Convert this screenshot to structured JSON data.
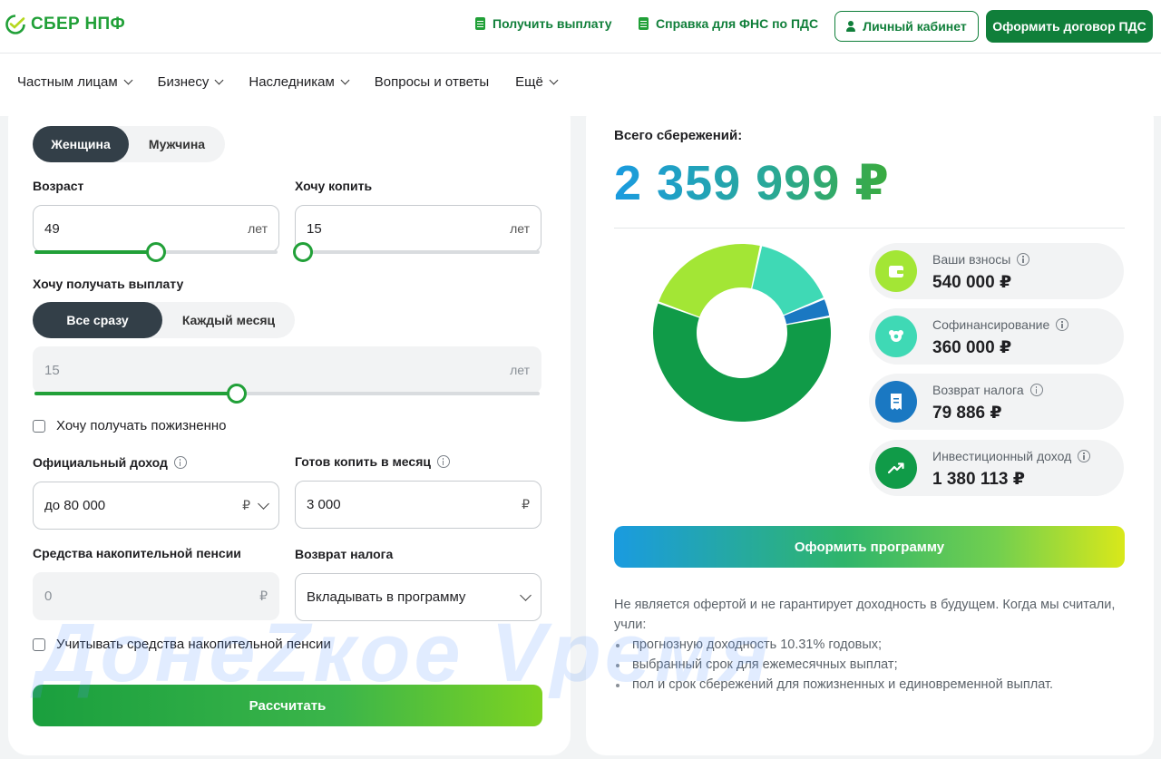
{
  "header": {
    "logo_text": "СБЕР НПФ",
    "links": [
      "Получить выплату",
      "Справка для ФНС по ПДС"
    ],
    "cabinet_label": "Личный кабинет",
    "contract_label": "Оформить договор ПДС"
  },
  "nav": {
    "items": [
      "Частным лицам",
      "Бизнесу",
      "Наследникам",
      "Вопросы и ответы",
      "Ещё"
    ]
  },
  "form": {
    "gender": {
      "options": [
        "Женщина",
        "Мужчина"
      ],
      "selected": "Женщина"
    },
    "age": {
      "label": "Возраст",
      "value": "49",
      "unit": "лет",
      "slider_fraction": 0.49
    },
    "save_years": {
      "label": "Хочу копить",
      "value": "15",
      "unit": "лет",
      "slider_fraction": 0.0
    },
    "payout": {
      "label": "Хочу получать выплату",
      "options": [
        "Все сразу",
        "Каждый месяц"
      ],
      "selected": "Все сразу",
      "years_value": "15",
      "years_unit": "лет",
      "slider_fraction": 0.4
    },
    "lifetime_checkbox": "Хочу получать пожизненно",
    "income": {
      "label": "Официальный доход",
      "value": "до 80 000",
      "currency": "₽"
    },
    "monthly": {
      "label": "Готов копить в месяц",
      "value": "3 000",
      "currency": "₽"
    },
    "pension_funds": {
      "label": "Средства накопительной пенсии",
      "value": "0",
      "currency": "₽"
    },
    "tax_return": {
      "label": "Возврат налога",
      "value": "Вкладывать в программу"
    },
    "pension_checkbox": "Учитывать средства накопительной пенсии",
    "calculate_label": "Рассчитать"
  },
  "result": {
    "total_label": "Всего сбережений:",
    "total_value": "2 359 999 ₽",
    "stats": [
      {
        "label": "Ваши взносы",
        "value": "540 000 ₽",
        "color": "#a3e635",
        "icon": "wallet-icon"
      },
      {
        "label": "Софинансирование",
        "value": "360 000 ₽",
        "color": "#3fd9b5",
        "icon": "shield-icon"
      },
      {
        "label": "Возврат налога",
        "value": "79 886 ₽",
        "color": "#1a78c2",
        "icon": "receipt-icon"
      },
      {
        "label": "Инвестиционный доход",
        "value": "1 380 113 ₽",
        "color": "#109b48",
        "icon": "trend-icon"
      }
    ],
    "donut_values": [
      540000,
      360000,
      79886,
      1380113
    ],
    "program_label": "Оформить программу",
    "disclaimer_intro": "Не является офертой и не гарантирует доходность в будущем. Когда мы считали, учли:",
    "disclaimer_items": [
      "прогнозную доходность 10.31% годовых;",
      "выбранный срок для ежемесячных выплат;",
      "пол и срок сбережений для пожизненных и единовременной выплат."
    ]
  },
  "watermark_text": "ДонеZкое Vремя"
}
